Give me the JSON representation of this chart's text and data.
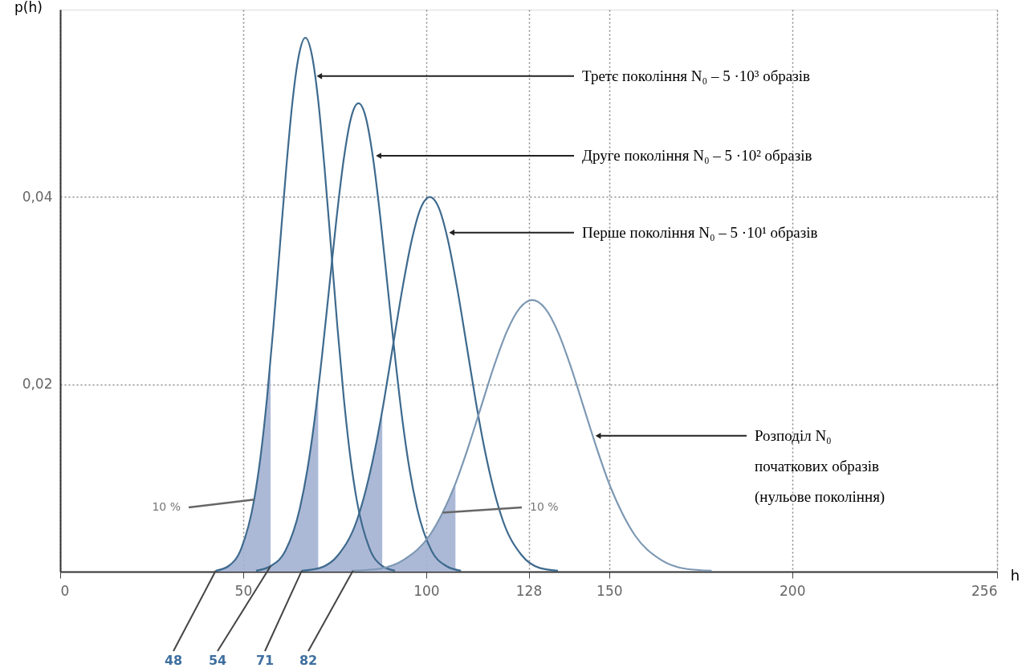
{
  "chart_data": {
    "type": "line",
    "xlabel": "h",
    "ylabel": "p(h)",
    "xlim": [
      0,
      256
    ],
    "ylim": [
      0,
      0.06
    ],
    "xticks": [
      0,
      50,
      100,
      128,
      150,
      200,
      256
    ],
    "yticks": [
      {
        "value": 0.02,
        "label": "0,02"
      },
      {
        "value": 0.04,
        "label": "0,04"
      }
    ],
    "grid": true,
    "series": [
      {
        "type": "area",
        "color": "#a3b1d2",
        "x": [
          42.5,
          46,
          49.5,
          53,
          54.75,
          56.5,
          57.5
        ],
        "values": [
          0.0001,
          0.0006,
          0.0025,
          0.0077,
          0.0123,
          0.0185,
          0.0227
        ]
      },
      {
        "type": "area",
        "color": "#a3b1d2",
        "x": [
          53.5,
          57.5,
          61.5,
          65.5,
          67.5,
          69.5,
          70.5
        ],
        "values": [
          0.0001,
          0.0006,
          0.0022,
          0.0068,
          0.0108,
          0.0162,
          0.0194
        ]
      },
      {
        "type": "area",
        "color": "#a3b1d2",
        "x": [
          66,
          71,
          76,
          81,
          83.5,
          86,
          88
        ],
        "values": [
          0.0001,
          0.0004,
          0.0018,
          0.0054,
          0.0087,
          0.013,
          0.0172
        ]
      },
      {
        "type": "area",
        "color": "#a3b1d2",
        "x": [
          80,
          87,
          94,
          101,
          104.5,
          108
        ],
        "values": [
          0.0001,
          0.0003,
          0.0013,
          0.0039,
          0.0063,
          0.0094
        ]
      },
      {
        "color": "#3e6a8e",
        "x": [
          42.5,
          46,
          49.5,
          53,
          54.75,
          56.5,
          58.25,
          60,
          61.75,
          63.5,
          65.25,
          67,
          68.75,
          70.5,
          72.25,
          74,
          75.75,
          77.5,
          79.25,
          81,
          84.5,
          88,
          91.5
        ],
        "values": [
          0.0001,
          0.0006,
          0.0025,
          0.0077,
          0.0123,
          0.0185,
          0.0261,
          0.0346,
          0.043,
          0.0503,
          0.0552,
          0.057,
          0.0552,
          0.0503,
          0.043,
          0.0346,
          0.0261,
          0.0185,
          0.0123,
          0.0077,
          0.0025,
          0.0006,
          0.0001
        ]
      },
      {
        "color": "#3e6a8e",
        "x": [
          53.5,
          57.5,
          61.5,
          65.5,
          67.5,
          69.5,
          71.5,
          73.5,
          75.5,
          77.5,
          79.5,
          81.5,
          83.5,
          85.5,
          87.5,
          89.5,
          91.5,
          93.5,
          95.5,
          97.5,
          101.5,
          105.5,
          109.5
        ],
        "values": [
          0.0001,
          0.0006,
          0.0022,
          0.0068,
          0.0108,
          0.0162,
          0.0229,
          0.0303,
          0.0377,
          0.0441,
          0.0485,
          0.05,
          0.0485,
          0.0441,
          0.0377,
          0.0303,
          0.0229,
          0.0162,
          0.0108,
          0.0068,
          0.0022,
          0.0006,
          0.0001
        ]
      },
      {
        "color": "#3e6a8e",
        "x": [
          66,
          71,
          76,
          81,
          83.5,
          86,
          88.5,
          91,
          93.5,
          96,
          98.5,
          101,
          103.5,
          106,
          108.5,
          111,
          113.5,
          116,
          118.5,
          121,
          126,
          131,
          136
        ],
        "values": [
          0.0001,
          0.0004,
          0.0018,
          0.0054,
          0.0087,
          0.013,
          0.0183,
          0.0243,
          0.0302,
          0.0353,
          0.0388,
          0.04,
          0.0388,
          0.0353,
          0.0302,
          0.0243,
          0.0183,
          0.013,
          0.0087,
          0.0054,
          0.0018,
          0.0004,
          0.0001
        ]
      },
      {
        "color": "#7d98b3",
        "x": [
          80,
          87,
          94,
          101,
          104.5,
          108,
          111.5,
          115,
          118.5,
          122,
          125.5,
          129,
          132.5,
          136,
          139.5,
          143,
          146.5,
          150,
          153.5,
          157,
          164,
          171,
          178
        ],
        "values": [
          0.0001,
          0.0003,
          0.0013,
          0.0039,
          0.0063,
          0.0094,
          0.0133,
          0.0176,
          0.0219,
          0.0256,
          0.0281,
          0.029,
          0.0281,
          0.0256,
          0.0219,
          0.0176,
          0.0133,
          0.0094,
          0.0063,
          0.0039,
          0.0013,
          0.0003,
          0.0001
        ]
      }
    ],
    "annotations": [
      {
        "text": "Третє покоління N₀ – 5 ·10³ образів",
        "x": 70.8,
        "y": 0.0529
      },
      {
        "text": "Друге покоління N₀ – 5 ·10² образів",
        "x": 87,
        "y": 0.0444
      },
      {
        "text": "Перше покоління N₀ – 5 ·10¹ образів",
        "x": 107,
        "y": 0.0362
      },
      {
        "text": "Розподіл N₀\nпочаткових образів\n(нульове покоління)",
        "x": 147,
        "y": 0.0145
      },
      {
        "text": "10 %",
        "x": 53,
        "y": 0.0077
      },
      {
        "text": "10 %",
        "x": 104.5,
        "y": 0.0063
      },
      {
        "text": "48",
        "x": 42.5,
        "y": 0.0001
      },
      {
        "text": "54",
        "x": 57.5,
        "y": 0.0006
      },
      {
        "text": "71",
        "x": 66,
        "y": 0.0001
      },
      {
        "text": "82",
        "x": 80,
        "y": 0.0001
      }
    ]
  }
}
